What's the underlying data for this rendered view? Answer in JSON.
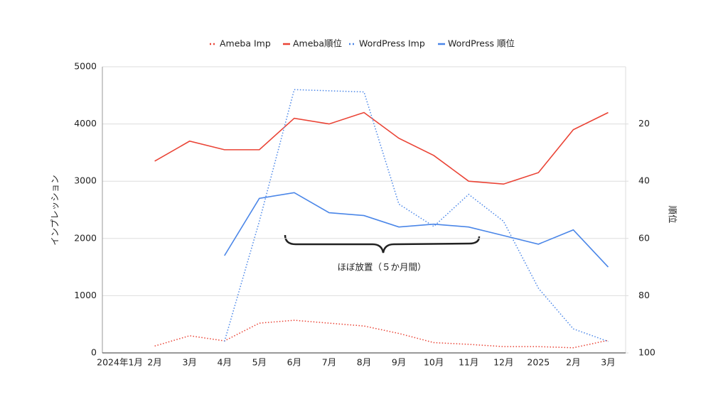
{
  "chart_data": {
    "type": "line",
    "categories": [
      "2024年1月",
      "2月",
      "3月",
      "4月",
      "5月",
      "6月",
      "7月",
      "8月",
      "9月",
      "10月",
      "11月",
      "12月",
      "2025",
      "2月",
      "3月"
    ],
    "series": [
      {
        "name": "Ameba Imp",
        "color": "#ea4335",
        "dash": "dotted",
        "axis": "y",
        "values": [
          null,
          120,
          300,
          210,
          520,
          570,
          520,
          470,
          340,
          180,
          150,
          110,
          110,
          90,
          220
        ]
      },
      {
        "name": "Ameba順位",
        "color": "#ea4335",
        "dash": "solid",
        "axis": "y2",
        "values": [
          null,
          33,
          26,
          29,
          29,
          18,
          20,
          16,
          25,
          31,
          40,
          41,
          37,
          22,
          16
        ]
      },
      {
        "name": "WordPress Imp",
        "color": "#4a86e8",
        "dash": "dotted",
        "axis": "y",
        "values": [
          null,
          null,
          null,
          200,
          2300,
          4600,
          4580,
          4560,
          2600,
          2210,
          2770,
          2300,
          1130,
          420,
          200
        ]
      },
      {
        "name": "WordPress 順位",
        "color": "#4a86e8",
        "dash": "solid",
        "axis": "y2",
        "values": [
          null,
          null,
          null,
          66,
          46,
          44,
          51,
          52,
          56,
          55,
          56,
          59,
          62,
          57,
          70
        ]
      }
    ],
    "ylabel": "インプレッション",
    "y2label": "順位",
    "ylim": [
      0,
      5000
    ],
    "yticks": [
      0,
      1000,
      2000,
      3000,
      4000,
      5000
    ],
    "y2lim": [
      100,
      0
    ],
    "y2ticks": [
      20,
      40,
      60,
      80,
      100
    ],
    "grid": true,
    "legend": "top",
    "annotation": "ほぼ放置（５か月間）"
  }
}
